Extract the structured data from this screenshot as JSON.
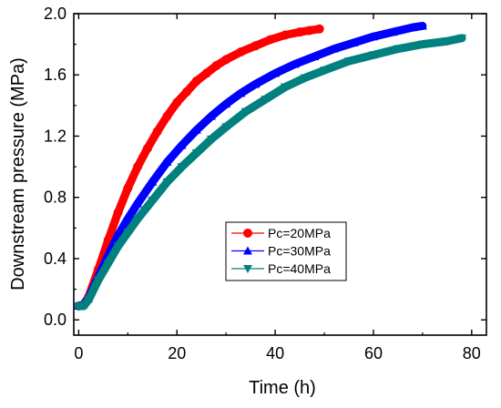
{
  "chart_data": {
    "type": "line",
    "title": "",
    "xlabel": "Time (h)",
    "ylabel": "Downstream pressure (MPa)",
    "xlim": [
      -1,
      83
    ],
    "ylim": [
      -0.1,
      2.0
    ],
    "xticks": [
      0,
      20,
      40,
      60,
      80
    ],
    "xtick_labels": [
      "0",
      "20",
      "40",
      "60",
      "80"
    ],
    "yticks": [
      0.0,
      0.4,
      0.8,
      1.2,
      1.6,
      2.0
    ],
    "ytick_labels": [
      "0.0",
      "0.4",
      "0.8",
      "1.2",
      "1.6",
      "2.0"
    ],
    "grid": false,
    "legend_position": "center-right",
    "series": [
      {
        "name": "Pc=20MPa",
        "color": "#ff0000",
        "marker": "circle",
        "x": [
          0,
          1,
          2,
          4,
          6,
          8,
          10,
          12,
          14,
          16,
          18,
          20,
          22,
          24,
          26,
          28,
          30,
          33,
          36,
          39,
          42,
          45,
          47,
          49
        ],
        "y": [
          0.09,
          0.1,
          0.15,
          0.33,
          0.52,
          0.7,
          0.86,
          1.0,
          1.12,
          1.23,
          1.33,
          1.42,
          1.49,
          1.56,
          1.61,
          1.66,
          1.7,
          1.75,
          1.79,
          1.83,
          1.86,
          1.88,
          1.89,
          1.9
        ]
      },
      {
        "name": "Pc=30MPa",
        "color": "#0000ff",
        "marker": "triangle-up",
        "x": [
          0,
          1,
          2,
          4,
          6,
          8,
          10,
          12,
          15,
          18,
          21,
          24,
          27,
          30,
          33,
          36,
          40,
          44,
          48,
          52,
          56,
          60,
          64,
          68,
          70
        ],
        "y": [
          0.09,
          0.1,
          0.14,
          0.28,
          0.42,
          0.55,
          0.66,
          0.76,
          0.9,
          1.03,
          1.14,
          1.24,
          1.33,
          1.41,
          1.48,
          1.54,
          1.61,
          1.67,
          1.72,
          1.77,
          1.81,
          1.85,
          1.88,
          1.91,
          1.92
        ]
      },
      {
        "name": "Pc=40MPa",
        "color": "#00807f",
        "marker": "triangle-down",
        "x": [
          0,
          1,
          2,
          4,
          6,
          8,
          10,
          12,
          15,
          18,
          21,
          24,
          27,
          30,
          34,
          38,
          42,
          46,
          50,
          55,
          60,
          65,
          70,
          75,
          78
        ],
        "y": [
          0.09,
          0.09,
          0.13,
          0.26,
          0.37,
          0.48,
          0.57,
          0.66,
          0.78,
          0.9,
          1.0,
          1.09,
          1.18,
          1.26,
          1.36,
          1.44,
          1.52,
          1.58,
          1.63,
          1.69,
          1.73,
          1.77,
          1.8,
          1.82,
          1.84
        ]
      }
    ]
  }
}
